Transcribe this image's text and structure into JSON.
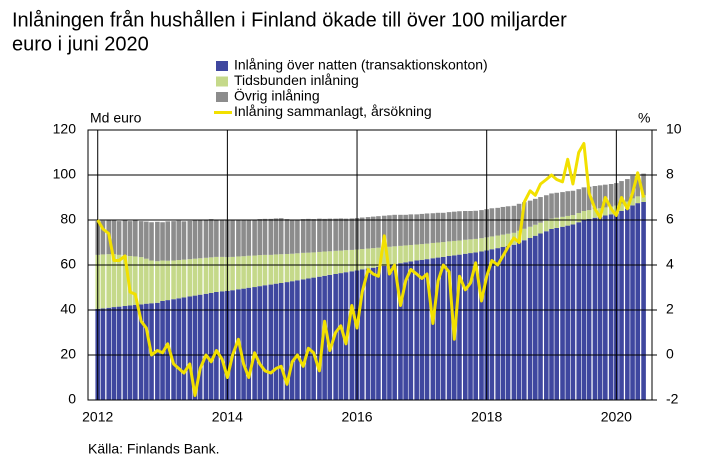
{
  "chart_data": {
    "type": "stacked_bar_line",
    "title_lines": [
      "Inlåningen från hushållen i Finland ökade till över 100 miljarder",
      "euro i juni 2020"
    ],
    "ylabel": "Md euro",
    "y2label": "%",
    "source": "Källa: Finlands Bank.",
    "xlim": [
      2011.85,
      2020.55
    ],
    "xticks": [
      2012,
      2014,
      2016,
      2018,
      2020
    ],
    "ylim": [
      0,
      120
    ],
    "yticks": [
      0,
      20,
      40,
      60,
      80,
      100,
      120
    ],
    "y2lim": [
      -2,
      10
    ],
    "y2ticks": [
      -2,
      0,
      2,
      4,
      6,
      8,
      10
    ],
    "grid": true,
    "x": [
      2012.0,
      2012.08,
      2012.17,
      2012.25,
      2012.33,
      2012.42,
      2012.5,
      2012.58,
      2012.67,
      2012.75,
      2012.83,
      2012.92,
      2013.0,
      2013.08,
      2013.17,
      2013.25,
      2013.33,
      2013.42,
      2013.5,
      2013.58,
      2013.67,
      2013.75,
      2013.83,
      2013.92,
      2014.0,
      2014.08,
      2014.17,
      2014.25,
      2014.33,
      2014.42,
      2014.5,
      2014.58,
      2014.67,
      2014.75,
      2014.83,
      2014.92,
      2015.0,
      2015.08,
      2015.17,
      2015.25,
      2015.33,
      2015.42,
      2015.5,
      2015.58,
      2015.67,
      2015.75,
      2015.83,
      2015.92,
      2016.0,
      2016.08,
      2016.17,
      2016.25,
      2016.33,
      2016.42,
      2016.5,
      2016.58,
      2016.67,
      2016.75,
      2016.83,
      2016.92,
      2017.0,
      2017.08,
      2017.17,
      2017.25,
      2017.33,
      2017.42,
      2017.5,
      2017.58,
      2017.67,
      2017.75,
      2017.83,
      2017.92,
      2018.0,
      2018.08,
      2018.17,
      2018.25,
      2018.33,
      2018.42,
      2018.5,
      2018.58,
      2018.67,
      2018.75,
      2018.83,
      2018.92,
      2019.0,
      2019.08,
      2019.17,
      2019.25,
      2019.33,
      2019.42,
      2019.5,
      2019.58,
      2019.67,
      2019.75,
      2019.83,
      2019.92,
      2020.0,
      2020.08,
      2020.17,
      2020.25,
      2020.33,
      2020.42
    ],
    "series": [
      {
        "name": "Inlåning över natten (transaktionskonton)",
        "color": "#3f479f",
        "kind": "bar",
        "values": [
          40.5,
          40.7,
          41,
          41.3,
          41.5,
          41.8,
          42,
          42.3,
          42.5,
          42.8,
          43,
          43.2,
          44,
          44.4,
          44.8,
          45.2,
          45.6,
          46,
          46.4,
          46.8,
          47.2,
          47.6,
          48,
          48.3,
          48.5,
          48.8,
          49.2,
          49.5,
          49.9,
          50.2,
          50.6,
          51,
          51.3,
          51.7,
          52,
          52.4,
          52.8,
          53.2,
          53.6,
          54,
          54.4,
          54.8,
          55.2,
          55.6,
          56,
          56.4,
          56.8,
          57.2,
          57.6,
          58,
          58.4,
          58.8,
          59.2,
          59.6,
          60,
          60.4,
          60.8,
          61.2,
          61.6,
          62,
          62.3,
          62.6,
          63,
          63.3,
          63.6,
          64,
          64.3,
          64.6,
          65,
          65.3,
          65.6,
          66,
          66.5,
          67,
          67.5,
          68,
          68.5,
          69,
          70,
          71,
          72,
          73,
          74,
          75,
          76,
          76.5,
          77,
          77.5,
          78,
          79,
          80,
          80.5,
          81,
          81.5,
          82,
          82.5,
          83,
          84,
          85,
          86.5,
          87.5,
          88
        ]
      },
      {
        "name": "Tidsbunden inlåning",
        "color": "#c5d98a",
        "kind": "bar",
        "values": [
          24,
          24,
          23.8,
          23.5,
          23,
          22.5,
          22,
          21.5,
          21,
          20,
          19,
          18.5,
          18,
          17.5,
          17.2,
          17,
          16.8,
          16.6,
          16.4,
          16.2,
          16,
          15.8,
          15.6,
          15.3,
          15,
          14.8,
          14.6,
          14.4,
          14.2,
          14,
          13.8,
          13.5,
          13.2,
          13,
          12.8,
          12.5,
          12.2,
          12,
          11.8,
          11.5,
          11.2,
          11,
          10.8,
          10.5,
          10.3,
          10,
          9.8,
          9.5,
          9.3,
          9.1,
          8.9,
          8.7,
          8.5,
          8.3,
          8.1,
          7.9,
          7.7,
          7.5,
          7.3,
          7.1,
          7,
          6.9,
          6.8,
          6.7,
          6.6,
          6.5,
          6.4,
          6.3,
          6.2,
          6.1,
          6,
          5.9,
          5.8,
          5.7,
          5.6,
          5.5,
          5.4,
          5.3,
          5.2,
          5.1,
          5,
          4.9,
          4.8,
          4.7,
          4.6,
          4.5,
          4.4,
          4.3,
          4.2,
          4.1,
          4,
          3.9,
          3.8,
          3.7,
          3.6,
          3.5,
          3.4,
          3.3,
          3.2,
          3.1,
          3,
          3
        ]
      },
      {
        "name": "Övrig inlåning",
        "color": "#8c8c8c",
        "kind": "bar",
        "values": [
          15,
          15,
          15,
          15,
          15,
          15.5,
          15.5,
          16,
          16,
          16.5,
          17,
          17.5,
          17,
          17.5,
          17.5,
          17.5,
          17,
          17,
          17,
          17,
          17,
          17,
          16.5,
          16.5,
          16.5,
          16.5,
          16,
          16,
          16,
          16,
          16,
          16,
          16,
          16,
          16,
          15.5,
          15,
          15,
          15,
          15,
          14.8,
          14.8,
          14.5,
          14.5,
          14.3,
          14.3,
          14,
          14,
          14,
          14,
          14,
          14,
          14,
          14,
          14,
          14,
          13.8,
          13.6,
          13.6,
          13.4,
          13.4,
          13.4,
          13.2,
          13.2,
          13,
          13,
          13,
          13,
          12.8,
          12.6,
          12.5,
          12.5,
          12.5,
          12.5,
          12.3,
          12.3,
          12.2,
          12,
          12,
          11.8,
          11.6,
          11.5,
          11.4,
          11.3,
          11.2,
          11.1,
          11,
          11,
          10.8,
          10.6,
          10.5,
          10.4,
          10.3,
          10.2,
          10.1,
          10,
          10,
          10,
          10,
          10,
          9.8,
          9.6
        ]
      },
      {
        "name": "Inlåning sammanlagt, årsökning",
        "color": "#f2e000",
        "kind": "line",
        "axis": "y2",
        "values": [
          6.0,
          5.6,
          5.4,
          4.2,
          4.2,
          4.4,
          2.8,
          2.7,
          1.5,
          1.2,
          0.0,
          0.2,
          0.1,
          0.5,
          -0.4,
          -0.6,
          -0.8,
          -0.4,
          -1.8,
          -0.6,
          0.0,
          -0.3,
          0.2,
          -0.2,
          -1.0,
          0.0,
          0.7,
          -0.4,
          -1.0,
          0.1,
          -0.4,
          -0.7,
          -0.8,
          -0.6,
          -0.5,
          -1.3,
          -0.3,
          0.0,
          -0.5,
          0.3,
          0.1,
          -0.7,
          1.5,
          0.2,
          1.0,
          1.3,
          0.5,
          2.2,
          1.2,
          2.8,
          3.8,
          3.6,
          3.5,
          5.3,
          3.6,
          4.0,
          2.2,
          3.3,
          3.8,
          3.6,
          3.4,
          3.6,
          1.4,
          3.3,
          4.0,
          3.7,
          0.7,
          3.5,
          2.9,
          3.2,
          4.1,
          2.4,
          3.5,
          4.2,
          4.0,
          4.4,
          4.8,
          5.2,
          5.0,
          6.8,
          7.3,
          7.1,
          7.6,
          7.8,
          8.0,
          7.8,
          7.7,
          8.7,
          7.6,
          9.0,
          9.4,
          7.2,
          6.5,
          6.1,
          7.0,
          6.5,
          6.2,
          7.0,
          6.5,
          7.2,
          8.1,
          7.0
        ]
      }
    ]
  }
}
